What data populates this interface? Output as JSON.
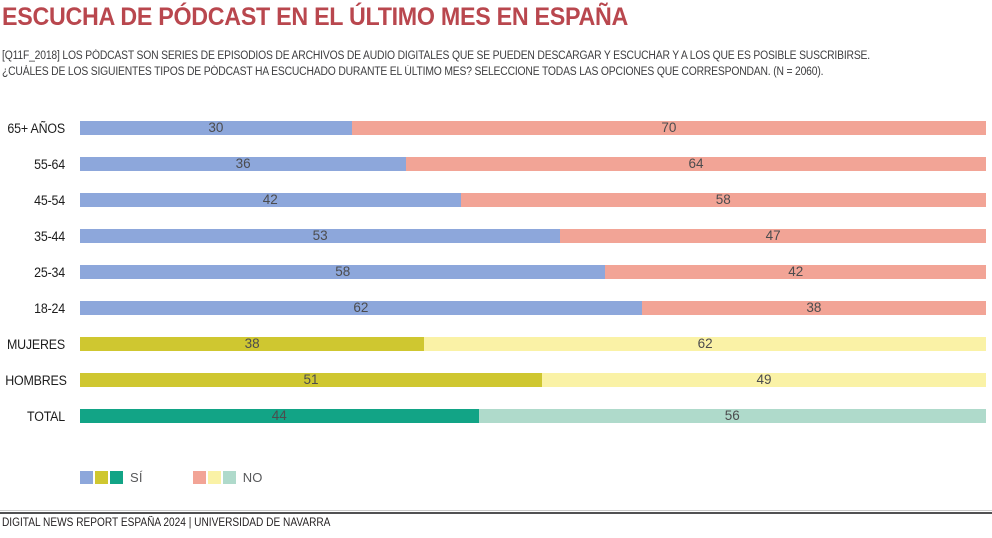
{
  "header": {
    "title": "ESCUCHA DE PÓDCAST EN EL ÚLTIMO MES EN ESPAÑA",
    "subtitle_line1": "[Q11F_2018] LOS PÓDCAST SON SERIES DE EPISODIOS DE ARCHIVOS DE AUDIO DIGITALES QUE SE PUEDEN DESCARGAR Y ESCUCHAR Y A LOS QUE ES POSIBLE SUSCRIBIRSE.",
    "subtitle_line2": "¿CUÁLES DE LOS SIGUIENTES TIPOS DE PÓDCAST HA ESCUCHADO DURANTE EL ÚLTIMO MES? SELECCIONE TODAS LAS OPCIONES QUE CORRESPONDAN. (N = 2060)."
  },
  "chart_data": {
    "type": "bar",
    "orientation": "horizontal_stacked",
    "title": "ESCUCHA DE PÓDCAST EN EL ÚLTIMO MES EN ESPAÑA",
    "categories": [
      "65+ AÑOS",
      "55-64",
      "45-54",
      "35-44",
      "25-34",
      "18-24",
      "MUJERES",
      "HOMBRES",
      "TOTAL"
    ],
    "series": [
      {
        "name": "SÍ",
        "values": [
          30,
          36,
          42,
          53,
          58,
          62,
          38,
          51,
          44
        ]
      },
      {
        "name": "NO",
        "values": [
          70,
          64,
          58,
          47,
          42,
          38,
          62,
          49,
          56
        ]
      }
    ],
    "groups": [
      "age",
      "age",
      "age",
      "age",
      "age",
      "age",
      "gender",
      "gender",
      "total"
    ],
    "xlim": [
      0,
      100
    ],
    "value_labels": "inside_center",
    "legend_position": "bottom",
    "grid": false
  },
  "colors": {
    "title": "#b9474e",
    "si": {
      "age": "#8da7db",
      "gender": "#cfc730",
      "total": "#12a486"
    },
    "no": {
      "age": "#f2a496",
      "gender": "#faf2a6",
      "total": "#afdacb"
    },
    "value_text": "#4c4c4e",
    "category_text": "#1c1c1c",
    "legend_text": "#58595b"
  },
  "legend": {
    "si_label": "SÍ",
    "no_label": "NO",
    "si_swatch_groups": [
      "age",
      "gender",
      "total"
    ],
    "no_swatch_groups": [
      "age",
      "gender",
      "total"
    ]
  },
  "footer": {
    "source": "DIGITAL NEWS REPORT ESPAÑA 2024 | UNIVERSIDAD DE NAVARRA"
  }
}
